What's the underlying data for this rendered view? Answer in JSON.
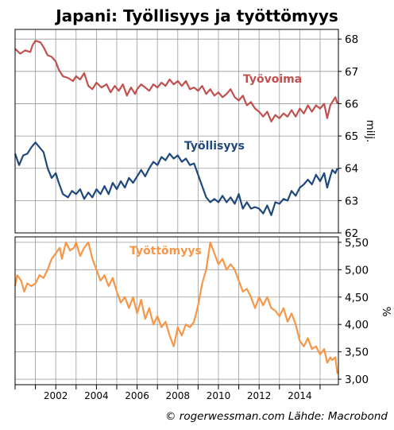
{
  "title": "Japani: Työllisyys ja työttömyys",
  "credit": "© rogerwessman.com Lähde: Macrobond",
  "colors": {
    "tyovoima": "#c0504d",
    "tyollisyys": "#1f497d",
    "tyottomyys": "#f79646",
    "grid": "#999999",
    "frame": "#000000"
  },
  "chart_data": [
    {
      "type": "line",
      "xlabel": "",
      "ylabel": "milj.",
      "x_range": [
        2000.0,
        2015.9
      ],
      "x_ticks": [
        "2002",
        "2004",
        "2006",
        "2008",
        "2010",
        "2012",
        "2014"
      ],
      "ylim": [
        62,
        68.3
      ],
      "y_ticks": [
        "62",
        "63",
        "64",
        "65",
        "66",
        "67",
        "68"
      ],
      "grid": true,
      "series": [
        {
          "name": "Työvoima",
          "points": [
            [
              2000.0,
              67.7
            ],
            [
              2000.25,
              67.55
            ],
            [
              2000.5,
              67.65
            ],
            [
              2000.75,
              67.6
            ],
            [
              2000.85,
              67.8
            ],
            [
              2001.0,
              67.95
            ],
            [
              2001.25,
              67.9
            ],
            [
              2001.4,
              67.75
            ],
            [
              2001.6,
              67.5
            ],
            [
              2001.8,
              67.45
            ],
            [
              2002.0,
              67.3
            ],
            [
              2002.15,
              67.05
            ],
            [
              2002.35,
              66.85
            ],
            [
              2002.6,
              66.8
            ],
            [
              2002.85,
              66.7
            ],
            [
              2003.0,
              66.85
            ],
            [
              2003.2,
              66.75
            ],
            [
              2003.4,
              66.95
            ],
            [
              2003.6,
              66.55
            ],
            [
              2003.8,
              66.45
            ],
            [
              2004.0,
              66.65
            ],
            [
              2004.25,
              66.5
            ],
            [
              2004.5,
              66.6
            ],
            [
              2004.7,
              66.35
            ],
            [
              2004.9,
              66.55
            ],
            [
              2005.1,
              66.4
            ],
            [
              2005.3,
              66.6
            ],
            [
              2005.5,
              66.25
            ],
            [
              2005.7,
              66.5
            ],
            [
              2005.9,
              66.3
            ],
            [
              2006.0,
              66.45
            ],
            [
              2006.2,
              66.6
            ],
            [
              2006.4,
              66.5
            ],
            [
              2006.6,
              66.4
            ],
            [
              2006.8,
              66.6
            ],
            [
              2007.0,
              66.5
            ],
            [
              2007.2,
              66.65
            ],
            [
              2007.4,
              66.55
            ],
            [
              2007.6,
              66.75
            ],
            [
              2007.8,
              66.6
            ],
            [
              2008.0,
              66.7
            ],
            [
              2008.2,
              66.55
            ],
            [
              2008.4,
              66.7
            ],
            [
              2008.6,
              66.45
            ],
            [
              2008.8,
              66.5
            ],
            [
              2009.0,
              66.4
            ],
            [
              2009.2,
              66.55
            ],
            [
              2009.4,
              66.3
            ],
            [
              2009.6,
              66.45
            ],
            [
              2009.8,
              66.25
            ],
            [
              2010.0,
              66.35
            ],
            [
              2010.2,
              66.2
            ],
            [
              2010.4,
              66.3
            ],
            [
              2010.6,
              66.45
            ],
            [
              2010.8,
              66.2
            ],
            [
              2011.0,
              66.1
            ],
            [
              2011.2,
              66.25
            ],
            [
              2011.4,
              65.95
            ],
            [
              2011.6,
              66.05
            ],
            [
              2011.8,
              65.85
            ],
            [
              2012.0,
              65.75
            ],
            [
              2012.2,
              65.6
            ],
            [
              2012.4,
              65.75
            ],
            [
              2012.6,
              65.45
            ],
            [
              2012.8,
              65.65
            ],
            [
              2013.0,
              65.55
            ],
            [
              2013.2,
              65.7
            ],
            [
              2013.4,
              65.6
            ],
            [
              2013.6,
              65.8
            ],
            [
              2013.8,
              65.6
            ],
            [
              2014.0,
              65.85
            ],
            [
              2014.2,
              65.7
            ],
            [
              2014.4,
              65.95
            ],
            [
              2014.6,
              65.75
            ],
            [
              2014.8,
              65.95
            ],
            [
              2015.0,
              65.85
            ],
            [
              2015.2,
              66.0
            ],
            [
              2015.35,
              65.55
            ],
            [
              2015.5,
              65.95
            ],
            [
              2015.6,
              66.05
            ],
            [
              2015.75,
              66.2
            ],
            [
              2015.85,
              66.0
            ]
          ]
        },
        {
          "name": "Työllisyys",
          "points": [
            [
              2000.0,
              64.45
            ],
            [
              2000.2,
              64.1
            ],
            [
              2000.4,
              64.4
            ],
            [
              2000.6,
              64.45
            ],
            [
              2000.8,
              64.65
            ],
            [
              2001.0,
              64.8
            ],
            [
              2001.2,
              64.65
            ],
            [
              2001.4,
              64.5
            ],
            [
              2001.6,
              64.0
            ],
            [
              2001.8,
              63.7
            ],
            [
              2002.0,
              63.85
            ],
            [
              2002.15,
              63.55
            ],
            [
              2002.35,
              63.2
            ],
            [
              2002.6,
              63.1
            ],
            [
              2002.8,
              63.3
            ],
            [
              2003.0,
              63.2
            ],
            [
              2003.2,
              63.35
            ],
            [
              2003.4,
              63.05
            ],
            [
              2003.6,
              63.25
            ],
            [
              2003.8,
              63.1
            ],
            [
              2004.0,
              63.35
            ],
            [
              2004.2,
              63.2
            ],
            [
              2004.4,
              63.45
            ],
            [
              2004.6,
              63.2
            ],
            [
              2004.8,
              63.55
            ],
            [
              2005.0,
              63.35
            ],
            [
              2005.2,
              63.6
            ],
            [
              2005.4,
              63.4
            ],
            [
              2005.6,
              63.7
            ],
            [
              2005.8,
              63.55
            ],
            [
              2006.0,
              63.75
            ],
            [
              2006.2,
              63.95
            ],
            [
              2006.4,
              63.75
            ],
            [
              2006.6,
              64.0
            ],
            [
              2006.8,
              64.2
            ],
            [
              2007.0,
              64.1
            ],
            [
              2007.2,
              64.35
            ],
            [
              2007.4,
              64.25
            ],
            [
              2007.6,
              64.45
            ],
            [
              2007.8,
              64.3
            ],
            [
              2008.0,
              64.4
            ],
            [
              2008.2,
              64.2
            ],
            [
              2008.4,
              64.3
            ],
            [
              2008.6,
              64.1
            ],
            [
              2008.8,
              64.15
            ],
            [
              2009.0,
              63.8
            ],
            [
              2009.2,
              63.45
            ],
            [
              2009.4,
              63.1
            ],
            [
              2009.6,
              62.95
            ],
            [
              2009.8,
              63.05
            ],
            [
              2010.0,
              62.95
            ],
            [
              2010.2,
              63.15
            ],
            [
              2010.4,
              62.95
            ],
            [
              2010.6,
              63.1
            ],
            [
              2010.8,
              62.9
            ],
            [
              2011.0,
              63.2
            ],
            [
              2011.2,
              62.75
            ],
            [
              2011.4,
              62.95
            ],
            [
              2011.6,
              62.75
            ],
            [
              2011.8,
              62.8
            ],
            [
              2012.0,
              62.75
            ],
            [
              2012.2,
              62.6
            ],
            [
              2012.4,
              62.85
            ],
            [
              2012.6,
              62.55
            ],
            [
              2012.8,
              62.95
            ],
            [
              2013.0,
              62.9
            ],
            [
              2013.2,
              63.05
            ],
            [
              2013.4,
              63.0
            ],
            [
              2013.6,
              63.3
            ],
            [
              2013.8,
              63.15
            ],
            [
              2014.0,
              63.4
            ],
            [
              2014.2,
              63.5
            ],
            [
              2014.4,
              63.65
            ],
            [
              2014.6,
              63.5
            ],
            [
              2014.8,
              63.8
            ],
            [
              2015.0,
              63.6
            ],
            [
              2015.2,
              63.85
            ],
            [
              2015.35,
              63.4
            ],
            [
              2015.5,
              63.75
            ],
            [
              2015.6,
              63.95
            ],
            [
              2015.75,
              63.85
            ],
            [
              2015.85,
              64.0
            ]
          ]
        }
      ]
    },
    {
      "type": "line",
      "xlabel": "",
      "ylabel": "%",
      "x_range": [
        2000.0,
        2015.9
      ],
      "x_ticks": [
        "2002",
        "2004",
        "2006",
        "2008",
        "2010",
        "2012",
        "2014"
      ],
      "ylim": [
        2.9,
        5.6
      ],
      "y_ticks": [
        "3,00",
        "3,50",
        "4,00",
        "4,50",
        "5,00",
        "5,50"
      ],
      "grid": true,
      "series": [
        {
          "name": "Työttömyys",
          "points": [
            [
              2000.0,
              4.7
            ],
            [
              2000.1,
              4.9
            ],
            [
              2000.3,
              4.8
            ],
            [
              2000.45,
              4.6
            ],
            [
              2000.6,
              4.75
            ],
            [
              2000.8,
              4.7
            ],
            [
              2001.0,
              4.75
            ],
            [
              2001.2,
              4.9
            ],
            [
              2001.4,
              4.85
            ],
            [
              2001.6,
              5.0
            ],
            [
              2001.8,
              5.2
            ],
            [
              2002.0,
              5.3
            ],
            [
              2002.2,
              5.4
            ],
            [
              2002.3,
              5.2
            ],
            [
              2002.5,
              5.5
            ],
            [
              2002.7,
              5.35
            ],
            [
              2002.9,
              5.4
            ],
            [
              2003.0,
              5.5
            ],
            [
              2003.2,
              5.25
            ],
            [
              2003.4,
              5.4
            ],
            [
              2003.6,
              5.5
            ],
            [
              2003.8,
              5.2
            ],
            [
              2004.0,
              5.0
            ],
            [
              2004.2,
              4.8
            ],
            [
              2004.4,
              4.9
            ],
            [
              2004.6,
              4.7
            ],
            [
              2004.8,
              4.85
            ],
            [
              2005.0,
              4.6
            ],
            [
              2005.2,
              4.4
            ],
            [
              2005.4,
              4.5
            ],
            [
              2005.6,
              4.3
            ],
            [
              2005.8,
              4.5
            ],
            [
              2006.0,
              4.2
            ],
            [
              2006.2,
              4.45
            ],
            [
              2006.4,
              4.1
            ],
            [
              2006.6,
              4.3
            ],
            [
              2006.8,
              4.0
            ],
            [
              2007.0,
              4.15
            ],
            [
              2007.2,
              3.95
            ],
            [
              2007.4,
              4.05
            ],
            [
              2007.6,
              3.8
            ],
            [
              2007.8,
              3.6
            ],
            [
              2008.0,
              3.95
            ],
            [
              2008.2,
              3.8
            ],
            [
              2008.4,
              4.0
            ],
            [
              2008.6,
              3.95
            ],
            [
              2008.8,
              4.05
            ],
            [
              2009.0,
              4.35
            ],
            [
              2009.2,
              4.75
            ],
            [
              2009.4,
              5.0
            ],
            [
              2009.6,
              5.5
            ],
            [
              2009.8,
              5.3
            ],
            [
              2010.0,
              5.1
            ],
            [
              2010.2,
              5.2
            ],
            [
              2010.4,
              5.0
            ],
            [
              2010.6,
              5.1
            ],
            [
              2010.8,
              5.0
            ],
            [
              2011.0,
              4.8
            ],
            [
              2011.2,
              4.6
            ],
            [
              2011.4,
              4.65
            ],
            [
              2011.6,
              4.5
            ],
            [
              2011.8,
              4.3
            ],
            [
              2012.0,
              4.5
            ],
            [
              2012.2,
              4.35
            ],
            [
              2012.4,
              4.5
            ],
            [
              2012.6,
              4.3
            ],
            [
              2012.8,
              4.25
            ],
            [
              2013.0,
              4.15
            ],
            [
              2013.2,
              4.3
            ],
            [
              2013.4,
              4.05
            ],
            [
              2013.6,
              4.2
            ],
            [
              2013.8,
              4.0
            ],
            [
              2014.0,
              3.7
            ],
            [
              2014.2,
              3.6
            ],
            [
              2014.4,
              3.75
            ],
            [
              2014.6,
              3.55
            ],
            [
              2014.8,
              3.6
            ],
            [
              2015.0,
              3.45
            ],
            [
              2015.2,
              3.55
            ],
            [
              2015.35,
              3.3
            ],
            [
              2015.5,
              3.4
            ],
            [
              2015.6,
              3.35
            ],
            [
              2015.75,
              3.4
            ],
            [
              2015.85,
              3.1
            ]
          ]
        }
      ]
    }
  ]
}
